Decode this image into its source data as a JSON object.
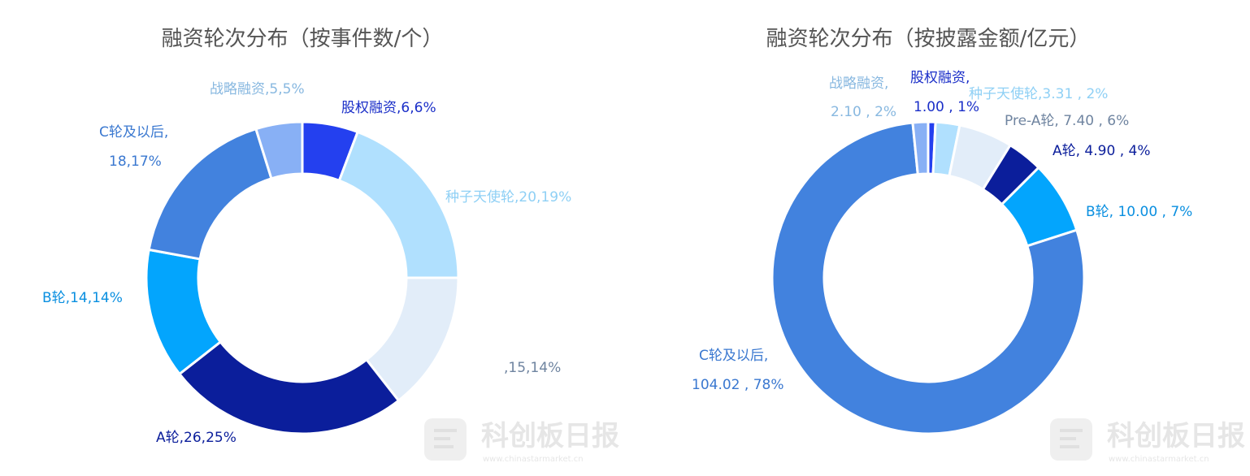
{
  "chart_data": [
    {
      "type": "pie",
      "title": "融资轮次分布（按事件数/个）",
      "slices": [
        {
          "label": "股权融资",
          "value": 6,
          "percent": "6%",
          "color": "#2440ef",
          "text": "股权融资,6,6%"
        },
        {
          "label": "种子天使轮",
          "value": 20,
          "percent": "19%",
          "color": "#b0e0fe",
          "text": "种子天使轮,20,19%"
        },
        {
          "label": "",
          "value": 15,
          "percent": "14%",
          "color": "#e2edf9",
          "text": ",15,14%"
        },
        {
          "label": "A轮",
          "value": 26,
          "percent": "25%",
          "color": "#0b1e9b",
          "text": "A轮,26,25%"
        },
        {
          "label": "B轮",
          "value": 14,
          "percent": "14%",
          "color": "#03a5fd",
          "text": "B轮,14,14%"
        },
        {
          "label": "C轮及以后",
          "value": 18,
          "percent": "17%",
          "color": "#4282de",
          "text": "C轮及以后,",
          "text2": "18,17%"
        },
        {
          "label": "战略融资",
          "value": 5,
          "percent": "5%",
          "color": "#88b0f5",
          "text": "战略融资,5,5%"
        }
      ]
    },
    {
      "type": "pie",
      "title": "融资轮次分布（按披露金额/亿元）",
      "slices": [
        {
          "label": "股权融资",
          "value": 1.0,
          "percent": "1%",
          "color": "#2440ef",
          "text": "股权融资,",
          "text2": "1.00 , 1%"
        },
        {
          "label": "种子天使轮",
          "value": 3.31,
          "percent": "2%",
          "color": "#b0e0fe",
          "text": "种子天使轮,3.31 , 2%"
        },
        {
          "label": "Pre-A轮",
          "value": 7.4,
          "percent": "6%",
          "color": "#e2edf9",
          "text": "Pre-A轮, 7.40 , 6%"
        },
        {
          "label": "A轮",
          "value": 4.9,
          "percent": "4%",
          "color": "#0b1e9b",
          "text": "A轮, 4.90 , 4%"
        },
        {
          "label": "B轮",
          "value": 10.0,
          "percent": "7%",
          "color": "#03a5fd",
          "text": "B轮, 10.00 , 7%"
        },
        {
          "label": "C轮及以后",
          "value": 104.02,
          "percent": "78%",
          "color": "#4282de",
          "text": "C轮及以后,",
          "text2": "104.02 , 78%"
        },
        {
          "label": "战略融资",
          "value": 2.1,
          "percent": "2%",
          "color": "#88b0f5",
          "text": "战略融资,",
          "text2": "2.10 , 2%"
        }
      ]
    }
  ],
  "watermark": {
    "name": "科创板日报",
    "url": "www.chinastarmarket.cn"
  }
}
